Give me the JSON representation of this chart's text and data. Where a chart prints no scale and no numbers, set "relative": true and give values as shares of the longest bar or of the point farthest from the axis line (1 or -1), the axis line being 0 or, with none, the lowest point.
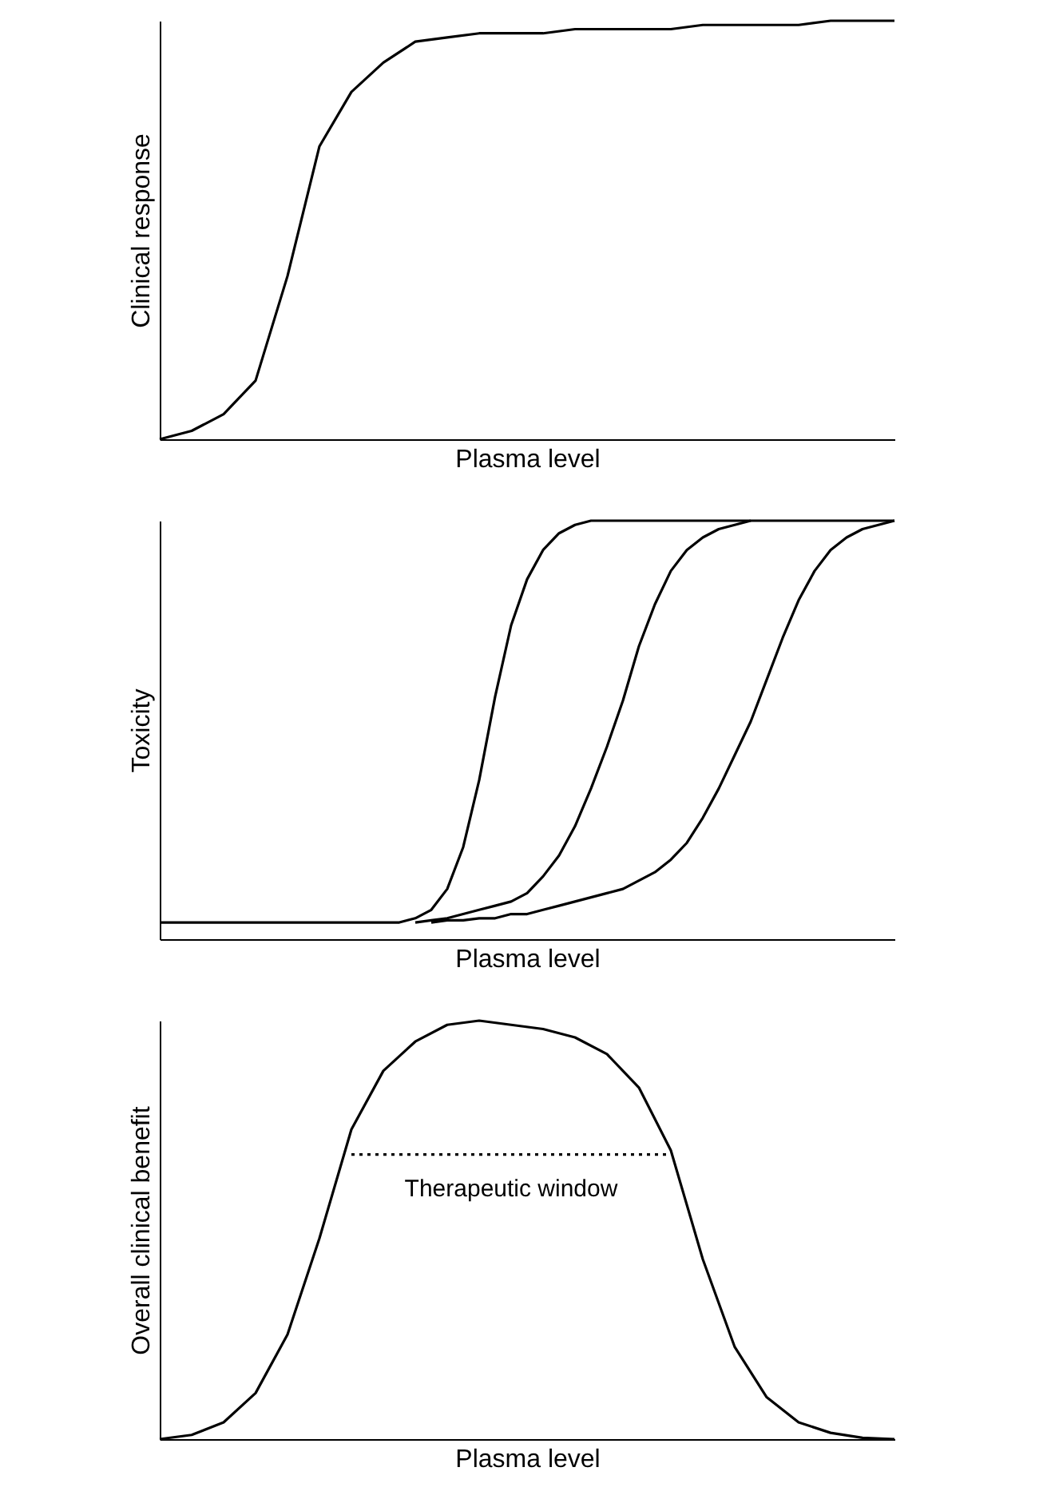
{
  "chart_data": [
    {
      "type": "line",
      "relative": true,
      "xlabel": "Plasma level",
      "ylabel": "Clinical response",
      "tick_labels": false,
      "grid": false,
      "legend": false,
      "marker": "none",
      "categories": [
        null,
        null,
        null,
        null,
        null,
        null,
        null,
        null,
        null,
        null,
        null,
        null,
        null,
        null,
        null,
        null,
        null,
        null,
        null,
        null,
        null,
        null,
        null,
        null
      ],
      "series": [
        {
          "color": "#000000",
          "line_style": "solid",
          "values": [
            0,
            0.02,
            0.06,
            0.14,
            0.39,
            0.7,
            0.83,
            0.9,
            0.95,
            0.96,
            0.97,
            0.97,
            0.97,
            0.98,
            0.98,
            0.98,
            0.98,
            0.99,
            0.99,
            0.99,
            0.99,
            1.0,
            1.0,
            1.0
          ]
        }
      ]
    },
    {
      "type": "line",
      "relative": true,
      "xlabel": "Plasma level",
      "ylabel": "Toxicity",
      "tick_labels": false,
      "grid": false,
      "legend": false,
      "marker": "none",
      "categories": [
        null,
        null,
        null,
        null,
        null,
        null,
        null,
        null,
        null,
        null,
        null,
        null,
        null,
        null,
        null,
        null,
        null,
        null,
        null,
        null,
        null,
        null,
        null,
        null,
        null,
        null,
        null,
        null,
        null,
        null,
        null,
        null,
        null,
        null,
        null,
        null,
        null,
        null,
        null,
        null,
        null,
        null,
        null,
        null,
        null,
        null,
        null
      ],
      "series": [
        {
          "color": "#000000",
          "line_style": "solid",
          "values": [
            0.04,
            0.04,
            0.04,
            0.04,
            0.04,
            0.04,
            0.04,
            0.04,
            0.04,
            0.04,
            0.04,
            0.04,
            0.04,
            0.04,
            0.04,
            0.04,
            0.05,
            0.07,
            0.12,
            0.22,
            0.38,
            0.58,
            0.75,
            0.86,
            0.93,
            0.97,
            0.99,
            1.0,
            1.0,
            1.0,
            1.0,
            1.0,
            1.0,
            1.0,
            1.0,
            1.0,
            1.0,
            1.0,
            1.0,
            1.0,
            1.0,
            1.0,
            1.0,
            1.0,
            1.0,
            1.0,
            1.0
          ]
        },
        {
          "color": "#000000",
          "line_style": "solid",
          "values": [
            null,
            null,
            null,
            null,
            null,
            null,
            null,
            null,
            null,
            null,
            null,
            null,
            null,
            null,
            null,
            null,
            0.04,
            0.045,
            0.05,
            0.06,
            0.07,
            0.08,
            0.09,
            0.11,
            0.15,
            0.2,
            0.27,
            0.36,
            0.46,
            0.57,
            0.7,
            0.8,
            0.88,
            0.93,
            0.96,
            0.98,
            0.99,
            1.0,
            null,
            null,
            null,
            null,
            null,
            null,
            null,
            null,
            null
          ]
        },
        {
          "color": "#000000",
          "line_style": "solid",
          "values": [
            null,
            null,
            null,
            null,
            null,
            null,
            null,
            null,
            null,
            null,
            null,
            null,
            null,
            null,
            null,
            null,
            null,
            0.04,
            0.045,
            0.045,
            0.05,
            0.05,
            0.06,
            0.06,
            0.07,
            0.08,
            0.09,
            0.1,
            0.11,
            0.12,
            0.14,
            0.16,
            0.19,
            0.23,
            0.29,
            0.36,
            0.44,
            0.52,
            0.62,
            0.72,
            0.81,
            0.88,
            0.93,
            0.96,
            0.98,
            0.99,
            1.0
          ]
        }
      ]
    },
    {
      "type": "line",
      "relative": true,
      "xlabel": "Plasma level",
      "ylabel": "Overall clinical benefit",
      "tick_labels": false,
      "grid": false,
      "legend": false,
      "marker": "none",
      "categories": [
        null,
        null,
        null,
        null,
        null,
        null,
        null,
        null,
        null,
        null,
        null,
        null,
        null,
        null,
        null,
        null,
        null,
        null,
        null,
        null,
        null,
        null,
        null,
        null
      ],
      "series": [
        {
          "color": "#000000",
          "line_style": "solid",
          "values": [
            0,
            0.01,
            0.04,
            0.11,
            0.25,
            0.48,
            0.74,
            0.88,
            0.95,
            0.99,
            1.0,
            0.99,
            0.98,
            0.96,
            0.92,
            0.84,
            0.69,
            0.43,
            0.22,
            0.1,
            0.04,
            0.015,
            0.003,
            0
          ]
        },
        {
          "name": "Therapeutic window",
          "color": "#000000",
          "line_style": "dotted",
          "values": [
            null,
            null,
            null,
            null,
            null,
            null,
            0.68,
            0.68,
            0.68,
            0.68,
            0.68,
            0.68,
            0.68,
            0.68,
            0.68,
            0.68,
            0.68,
            null,
            null,
            null,
            null,
            null,
            null,
            null
          ]
        }
      ]
    }
  ]
}
